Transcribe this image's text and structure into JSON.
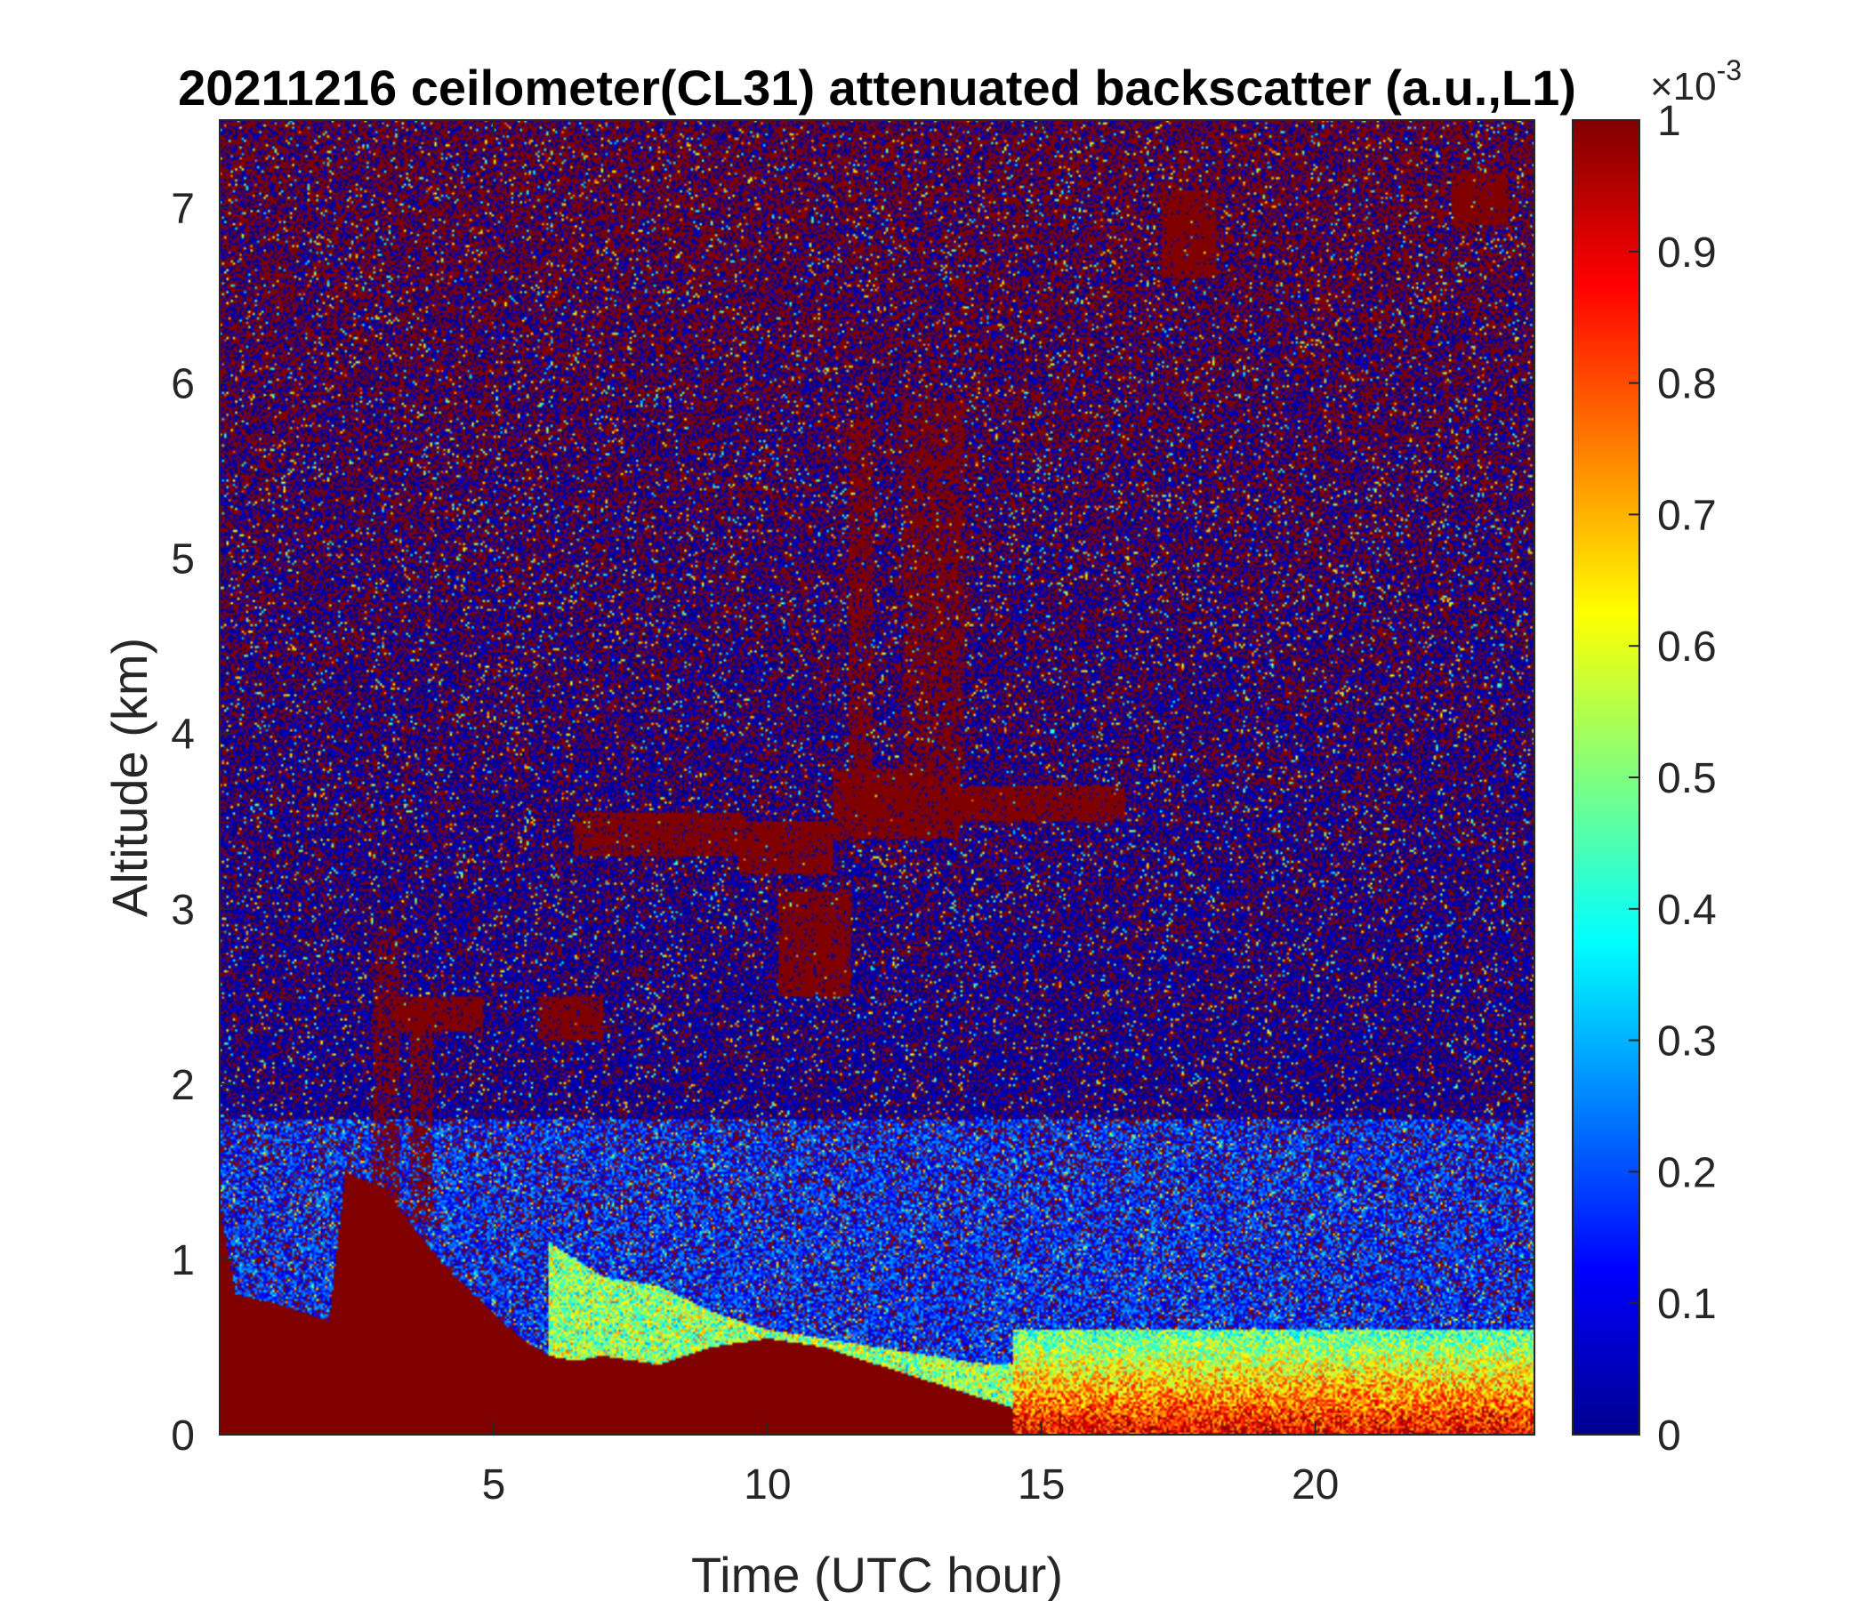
{
  "chart_data": {
    "type": "heatmap",
    "title": "20211216 ceilometer(CL31) attenuated backscatter (a.u.,L1)",
    "xlabel": "Time (UTC hour)",
    "ylabel": "Altitude (km)",
    "xlim": [
      0,
      24
    ],
    "ylim": [
      0,
      7.5
    ],
    "xticks": [
      5,
      10,
      15,
      20
    ],
    "xtick_labels": [
      "5",
      "10",
      "15",
      "20"
    ],
    "yticks": [
      0,
      1,
      2,
      3,
      4,
      5,
      6,
      7
    ],
    "ytick_labels": [
      "0",
      "1",
      "2",
      "3",
      "4",
      "5",
      "6",
      "7"
    ],
    "colorbar": {
      "colormap": "jet",
      "clim": [
        0,
        0.001
      ],
      "ticks": [
        0,
        0.1,
        0.2,
        0.3,
        0.4,
        0.5,
        0.6,
        0.7,
        0.8,
        0.9,
        1
      ],
      "tick_labels": [
        "0",
        "0.1",
        "0.2",
        "0.3",
        "0.4",
        "0.5",
        "0.6",
        "0.7",
        "0.8",
        "0.9",
        "1"
      ],
      "exponent_base": "×10",
      "exponent_power": "-3"
    },
    "colors": {
      "saturated": "#800000",
      "low": "#00008f",
      "mid_blue": "#0a3cff",
      "cyan": "#16e5ff",
      "yellow": "#ffe600",
      "orange": "#ff7a00"
    },
    "features": {
      "surface_layer": {
        "description_series": "saturated aerosol/fog layer top height (km) vs time (h)",
        "x": [
          0,
          0.3,
          1,
          2,
          2.3,
          3,
          4,
          4.8,
          5.5,
          6,
          6.5,
          7,
          8,
          9,
          10,
          11,
          12,
          13,
          14,
          15,
          16,
          17,
          18,
          19,
          20,
          21,
          22,
          23,
          24
        ],
        "y": [
          1.3,
          0.8,
          0.75,
          0.65,
          1.5,
          1.4,
          1.0,
          0.75,
          0.55,
          0.45,
          0.42,
          0.45,
          0.4,
          0.5,
          0.55,
          0.5,
          0.4,
          0.3,
          0.2,
          0.1,
          0.05,
          0.05,
          0.05,
          0.05,
          0.05,
          0.05,
          0.05,
          0.05,
          0.05
        ]
      },
      "enhanced_layer_top_km": {
        "x": [
          6,
          7,
          8,
          9,
          10,
          11,
          12,
          13,
          14,
          15,
          16,
          17,
          18,
          19,
          20,
          21,
          22,
          23,
          24
        ],
        "y": [
          1.1,
          0.9,
          0.85,
          0.7,
          0.6,
          0.55,
          0.5,
          0.45,
          0.4,
          0.4,
          0.45,
          0.5,
          0.55,
          0.55,
          0.6,
          0.6,
          0.6,
          0.6,
          0.6
        ]
      },
      "cloud_layers": [
        {
          "x0": 6.5,
          "x1": 9.5,
          "y0": 3.3,
          "y1": 3.55
        },
        {
          "x0": 9.5,
          "x1": 11.2,
          "y0": 3.2,
          "y1": 3.5
        },
        {
          "x0": 10.2,
          "x1": 11.5,
          "y0": 2.5,
          "y1": 3.1
        },
        {
          "x0": 11.2,
          "x1": 13.5,
          "y0": 3.4,
          "y1": 3.8
        },
        {
          "x0": 13.5,
          "x1": 16.5,
          "y0": 3.5,
          "y1": 3.7
        },
        {
          "x0": 3.2,
          "x1": 4.8,
          "y0": 2.3,
          "y1": 2.5
        },
        {
          "x0": 5.8,
          "x1": 7.0,
          "y0": 2.25,
          "y1": 2.5
        },
        {
          "x0": 17.2,
          "x1": 18.2,
          "y0": 6.6,
          "y1": 7.1
        },
        {
          "x0": 22.5,
          "x1": 23.5,
          "y0": 6.9,
          "y1": 7.2
        }
      ],
      "vertical_streaks": [
        {
          "x0": 11.5,
          "x1": 11.9,
          "y0": 3.5,
          "y1": 5.8
        },
        {
          "x0": 12.5,
          "x1": 13.6,
          "y0": 3.8,
          "y1": 5.9
        },
        {
          "x0": 2.8,
          "x1": 3.3,
          "y0": 1.3,
          "y1": 2.9
        },
        {
          "x0": 3.5,
          "x1": 3.9,
          "y0": 1.2,
          "y1": 2.5
        }
      ]
    }
  }
}
